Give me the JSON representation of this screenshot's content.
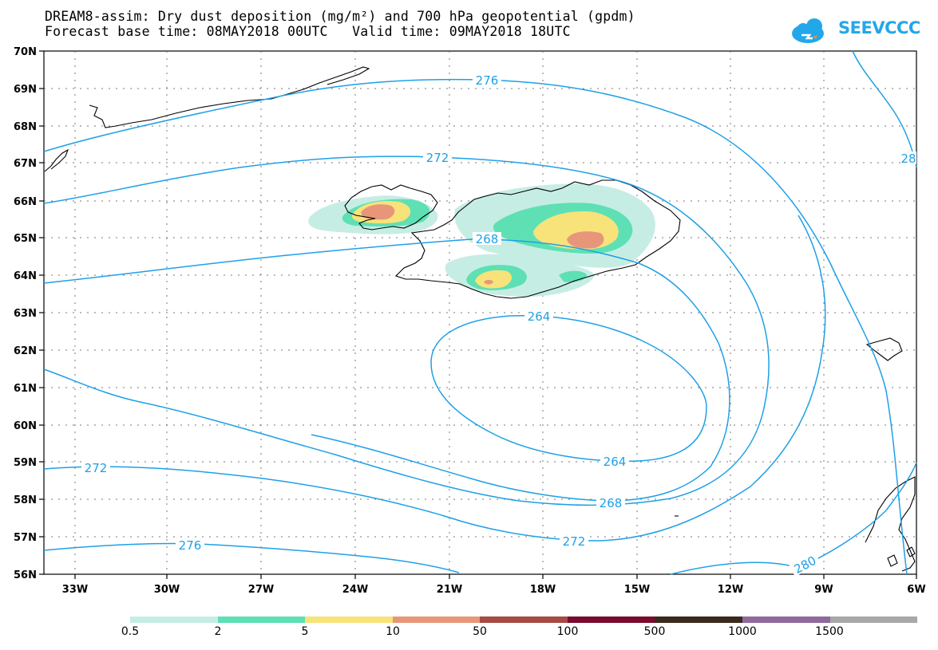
{
  "header": {
    "title_line1": "DREAM8-assim: Dry dust deposition (mg/m²) and 700 hPa geopotential (gpdm)",
    "forecast_base_label": "Forecast base time: 08MAY2018 00UTC",
    "valid_time_label": "Valid time: 09MAY2018 18UTC"
  },
  "logo": {
    "text": "SEEVCCC",
    "icon": "cloud-icon",
    "color": "#22a7ea"
  },
  "map": {
    "lat_labels": [
      "70N",
      "69N",
      "68N",
      "67N",
      "66N",
      "65N",
      "64N",
      "63N",
      "62N",
      "61N",
      "60N",
      "59N",
      "58N",
      "57N",
      "56N"
    ],
    "lon_labels": [
      "33W",
      "30W",
      "27W",
      "24W",
      "21W",
      "18W",
      "15W",
      "12W",
      "9W",
      "6W"
    ],
    "contour_color": "#1fa0e6",
    "contours": [
      {
        "value": "276",
        "label": "276"
      },
      {
        "value": "28",
        "label": "28"
      },
      {
        "value": "272",
        "label": "272"
      },
      {
        "value": "268",
        "label": "268"
      },
      {
        "value": "264",
        "label": "264"
      },
      {
        "value": "264b",
        "label": "264"
      },
      {
        "value": "272b",
        "label": "272"
      },
      {
        "value": "268b",
        "label": "268"
      },
      {
        "value": "272c",
        "label": "272"
      },
      {
        "value": "276b",
        "label": "276"
      },
      {
        "value": "280",
        "label": "280"
      }
    ]
  },
  "legend": {
    "colors": [
      "#c6ede4",
      "#5ee0b4",
      "#f7e37a",
      "#e8967a",
      "#a64a44",
      "#7b0b2e",
      "#3a2a1c",
      "#8e6b9a",
      "#a8a8a8"
    ],
    "labels": [
      "0.5",
      "2",
      "5",
      "10",
      "50",
      "100",
      "500",
      "1000",
      "1500"
    ]
  }
}
